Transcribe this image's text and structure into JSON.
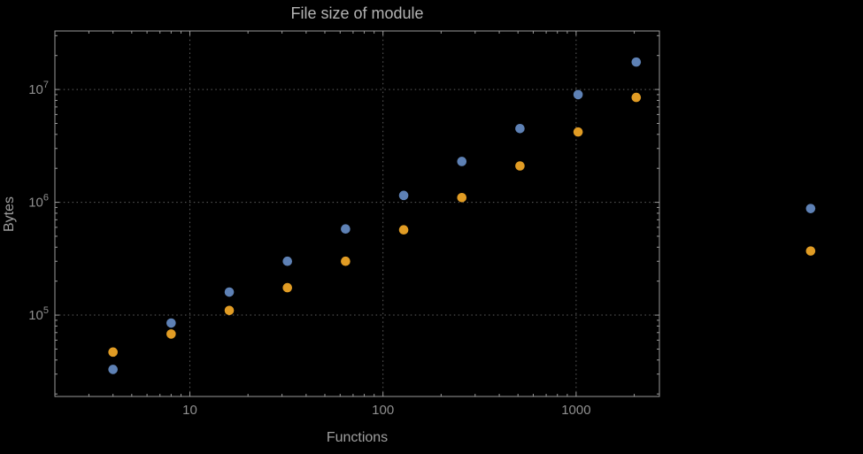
{
  "colors": {
    "background": "#000000",
    "frame": "#9a9a9a",
    "grid": "#5f5f5f",
    "tick_label": "#8f8f8f",
    "axis_label": "#9f9f9f",
    "title": "#b3b3b3",
    "series1": "#5e81b5",
    "series2": "#e19c24"
  },
  "chart_data": {
    "type": "scatter",
    "title": "File size of module",
    "xlabel": "Functions",
    "ylabel": "Bytes",
    "x_scale": "log",
    "y_scale": "log",
    "grid": true,
    "legend": "none",
    "xlim": [
      2,
      2700
    ],
    "ylim": [
      19000,
      33000000
    ],
    "x_tick_values": [
      10,
      100,
      1000
    ],
    "x_tick_labels": [
      "10",
      "100",
      "1000"
    ],
    "y_tick_values": [
      100000,
      1000000,
      10000000
    ],
    "y_tick_labels": [
      {
        "base": "10",
        "exponent": "5"
      },
      {
        "base": "10",
        "exponent": "6"
      },
      {
        "base": "10",
        "exponent": "7"
      }
    ],
    "series": [
      {
        "name": "series-1-blue",
        "color": "#5e81b5",
        "points": [
          [
            4,
            33000
          ],
          [
            8,
            85000
          ],
          [
            16,
            160000
          ],
          [
            32,
            300000
          ],
          [
            64,
            580000
          ],
          [
            128,
            1150000
          ],
          [
            256,
            2300000
          ],
          [
            512,
            4500000
          ],
          [
            1024,
            9000000
          ],
          [
            2048,
            17500000
          ],
          [
            16384,
            880000
          ]
        ]
      },
      {
        "name": "series-2-orange",
        "color": "#e19c24",
        "points": [
          [
            4,
            47000
          ],
          [
            8,
            68000
          ],
          [
            16,
            110000
          ],
          [
            32,
            175000
          ],
          [
            64,
            300000
          ],
          [
            128,
            570000
          ],
          [
            256,
            1100000
          ],
          [
            512,
            2100000
          ],
          [
            1024,
            4200000
          ],
          [
            2048,
            8500000
          ],
          [
            16384,
            370000
          ]
        ]
      }
    ]
  }
}
